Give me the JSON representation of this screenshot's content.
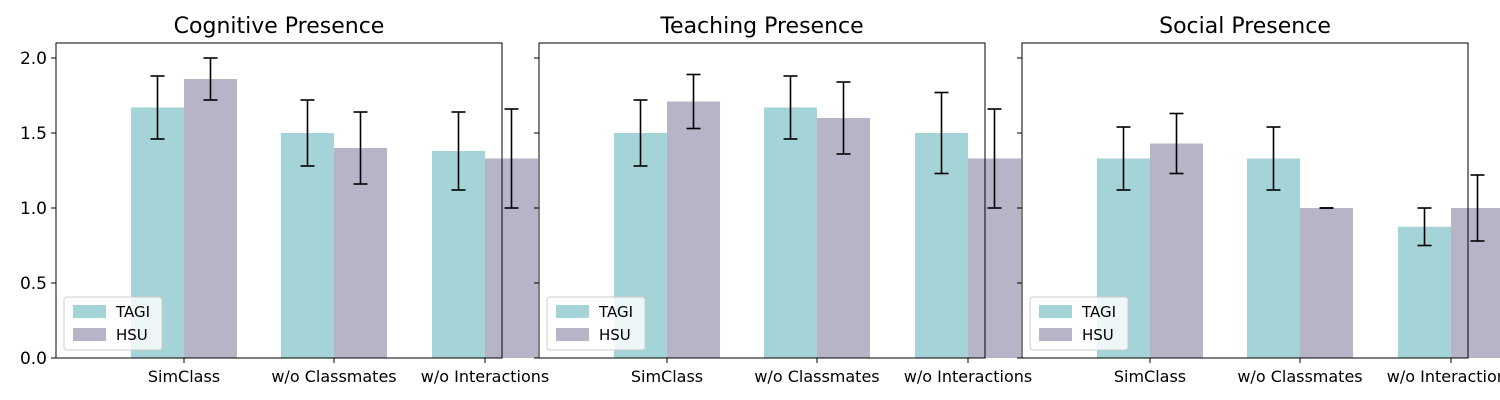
{
  "chart_data": [
    {
      "type": "bar",
      "title": "Cognitive Presence",
      "categories": [
        "SimClass",
        "w/o Classmates",
        "w/o Interactions"
      ],
      "series": [
        {
          "name": "TAGI",
          "values": [
            1.67,
            1.5,
            1.38
          ],
          "errors": [
            0.21,
            0.22,
            0.26
          ]
        },
        {
          "name": "HSU",
          "values": [
            1.86,
            1.4,
            1.33
          ],
          "errors": [
            0.14,
            0.24,
            0.33
          ]
        }
      ],
      "ylim": [
        0,
        2.1
      ],
      "yticks": [
        "0.0",
        "0.5",
        "1.0",
        "1.5",
        "2.0"
      ],
      "legend": "lower-left"
    },
    {
      "type": "bar",
      "title": "Teaching Presence",
      "categories": [
        "SimClass",
        "w/o Classmates",
        "w/o Interactions"
      ],
      "series": [
        {
          "name": "TAGI",
          "values": [
            1.5,
            1.67,
            1.5
          ],
          "errors": [
            0.22,
            0.21,
            0.27
          ]
        },
        {
          "name": "HSU",
          "values": [
            1.71,
            1.6,
            1.33
          ],
          "errors": [
            0.18,
            0.24,
            0.33
          ]
        }
      ],
      "ylim": [
        0,
        2.1
      ],
      "legend": "lower-left"
    },
    {
      "type": "bar",
      "title": "Social Presence",
      "categories": [
        "SimClass",
        "w/o Classmates",
        "w/o Interactions"
      ],
      "series": [
        {
          "name": "TAGI",
          "values": [
            1.33,
            1.33,
            0.875
          ],
          "errors": [
            0.21,
            0.21,
            0.125
          ]
        },
        {
          "name": "HSU",
          "values": [
            1.43,
            1.0,
            1.0
          ],
          "errors": [
            0.2,
            0.0,
            0.22
          ]
        }
      ],
      "ylim": [
        0,
        2.1
      ],
      "legend": "lower-left"
    }
  ],
  "colors": {
    "TAGI": "#a5d4d8",
    "HSU": "#b8b4c8",
    "error_bar": "#000000"
  }
}
